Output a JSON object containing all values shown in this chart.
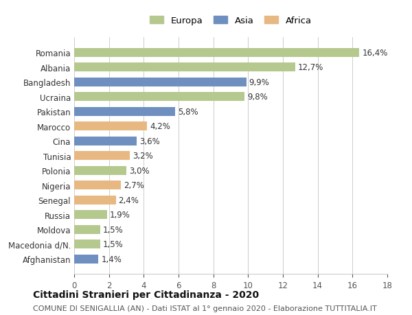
{
  "countries": [
    "Romania",
    "Albania",
    "Bangladesh",
    "Ucraina",
    "Pakistan",
    "Marocco",
    "Cina",
    "Tunisia",
    "Polonia",
    "Nigeria",
    "Senegal",
    "Russia",
    "Moldova",
    "Macedonia d/N.",
    "Afghanistan"
  ],
  "values": [
    16.4,
    12.7,
    9.9,
    9.8,
    5.8,
    4.2,
    3.6,
    3.2,
    3.0,
    2.7,
    2.4,
    1.9,
    1.5,
    1.5,
    1.4
  ],
  "continents": [
    "Europa",
    "Europa",
    "Asia",
    "Europa",
    "Asia",
    "Africa",
    "Asia",
    "Africa",
    "Europa",
    "Africa",
    "Africa",
    "Europa",
    "Europa",
    "Europa",
    "Asia"
  ],
  "colors": {
    "Europa": "#b5c98e",
    "Asia": "#6f8fc0",
    "Africa": "#e8b882"
  },
  "legend_order": [
    "Europa",
    "Asia",
    "Africa"
  ],
  "title": "Cittadini Stranieri per Cittadinanza - 2020",
  "subtitle": "COMUNE DI SENIGALLIA (AN) - Dati ISTAT al 1° gennaio 2020 - Elaborazione TUTTITALIA.IT",
  "xlim": [
    0,
    18
  ],
  "xticks": [
    0,
    2,
    4,
    6,
    8,
    10,
    12,
    14,
    16,
    18
  ],
  "background_color": "#ffffff",
  "grid_color": "#cccccc",
  "label_fontsize": 8.5,
  "title_fontsize": 10,
  "subtitle_fontsize": 8,
  "bar_height": 0.6,
  "value_label_fontsize": 8.5
}
